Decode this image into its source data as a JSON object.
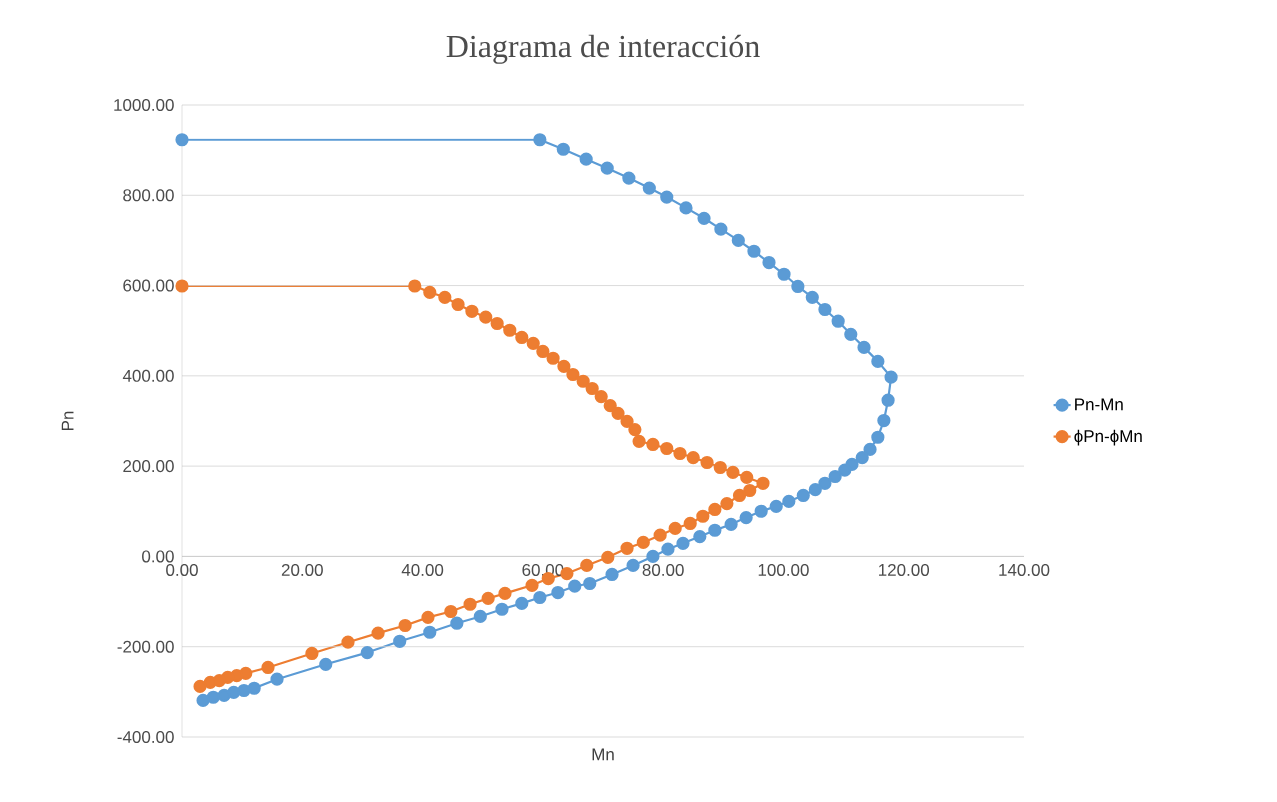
{
  "chart_data": {
    "type": "line",
    "title": "Diagrama de interacción",
    "xlabel": "Mn",
    "ylabel": "Pn",
    "xlim": [
      0,
      140
    ],
    "ylim": [
      -400,
      1000
    ],
    "xticks": [
      {
        "value": 0,
        "label": "0.00"
      },
      {
        "value": 20,
        "label": "20.00"
      },
      {
        "value": 40,
        "label": "40.00"
      },
      {
        "value": 60,
        "label": "60.00"
      },
      {
        "value": 80,
        "label": "80.00"
      },
      {
        "value": 100,
        "label": "100.00"
      },
      {
        "value": 120,
        "label": "120.00"
      },
      {
        "value": 140,
        "label": "140.00"
      }
    ],
    "yticks": [
      {
        "value": -400,
        "label": "-400.00"
      },
      {
        "value": -200,
        "label": "-200.00"
      },
      {
        "value": 0,
        "label": "0.00"
      },
      {
        "value": 200,
        "label": "200.00"
      },
      {
        "value": 400,
        "label": "400.00"
      },
      {
        "value": 600,
        "label": "600.00"
      },
      {
        "value": 800,
        "label": "800.00"
      },
      {
        "value": 1000,
        "label": "1000.00"
      }
    ],
    "grid": "y",
    "legend": "right",
    "marker": "circle",
    "line_style": "solid",
    "series": [
      {
        "name": "Pn-Mn",
        "color": "#5b9bd5",
        "x": [
          0,
          59.5,
          63.4,
          67.2,
          70.7,
          74.3,
          77.7,
          80.6,
          83.8,
          86.8,
          89.6,
          92.5,
          95.1,
          97.6,
          100.1,
          102.4,
          104.8,
          106.9,
          109.1,
          111.2,
          113.4,
          115.7,
          117.9,
          117.4,
          116.7,
          115.7,
          114.4,
          113.1,
          111.4,
          110.2,
          108.6,
          106.9,
          105.3,
          103.3,
          100.9,
          98.8,
          96.3,
          93.8,
          91.3,
          88.6,
          86.1,
          83.3,
          80.8,
          78.3,
          75.0,
          71.5,
          67.8,
          65.3,
          62.5,
          59.5,
          56.5,
          53.2,
          49.6,
          45.7,
          41.2,
          36.2,
          30.8,
          23.9,
          15.8,
          12.0,
          10.3,
          8.6,
          7.0,
          5.2,
          3.5
        ],
        "values": [
          923,
          923,
          902,
          880,
          860,
          838,
          816,
          796,
          772,
          749,
          725,
          700,
          676,
          651,
          625,
          598,
          574,
          547,
          521,
          492,
          463,
          432,
          397,
          346,
          301,
          264,
          237,
          219,
          204,
          191,
          177,
          162,
          148,
          135,
          122,
          111,
          100,
          86,
          71,
          58,
          44,
          29,
          16,
          0,
          -20,
          -40,
          -60,
          -66,
          -80,
          -91,
          -104,
          -117,
          -133,
          -148,
          -168,
          -188,
          -213,
          -239,
          -272,
          -292,
          -297,
          -301,
          -308,
          -312,
          -319
        ]
      },
      {
        "name": "ϕPn-ϕMn",
        "color": "#ed7d31",
        "x": [
          0,
          38.7,
          41.2,
          43.7,
          45.9,
          48.2,
          50.5,
          52.4,
          54.5,
          56.5,
          58.4,
          60.0,
          61.7,
          63.5,
          65.0,
          66.7,
          68.2,
          69.7,
          71.2,
          72.5,
          74.0,
          75.3,
          76.0,
          78.3,
          80.6,
          82.8,
          85.0,
          87.3,
          89.5,
          91.6,
          93.9,
          96.6,
          94.4,
          92.7,
          90.6,
          88.6,
          86.6,
          84.5,
          82.0,
          79.5,
          76.7,
          74.0,
          70.8,
          67.3,
          64.0,
          60.9,
          58.2,
          53.7,
          50.9,
          47.9,
          44.7,
          40.9,
          37.1,
          32.6,
          27.6,
          21.6,
          14.3,
          10.6,
          9.1,
          7.6,
          6.2,
          4.7,
          3.0
        ],
        "values": [
          599,
          599,
          585,
          574,
          558,
          543,
          530,
          516,
          501,
          485,
          472,
          454,
          439,
          421,
          403,
          388,
          372,
          354,
          334,
          317,
          299,
          281,
          255,
          248,
          239,
          228,
          219,
          208,
          197,
          186,
          175,
          162,
          146,
          135,
          117,
          104,
          89,
          73,
          62,
          47,
          31,
          18,
          -2,
          -20,
          -38,
          -49,
          -64,
          -82,
          -93,
          -106,
          -122,
          -135,
          -153,
          -170,
          -190,
          -215,
          -246,
          -259,
          -264,
          -268,
          -275,
          -279,
          -288
        ]
      }
    ]
  }
}
